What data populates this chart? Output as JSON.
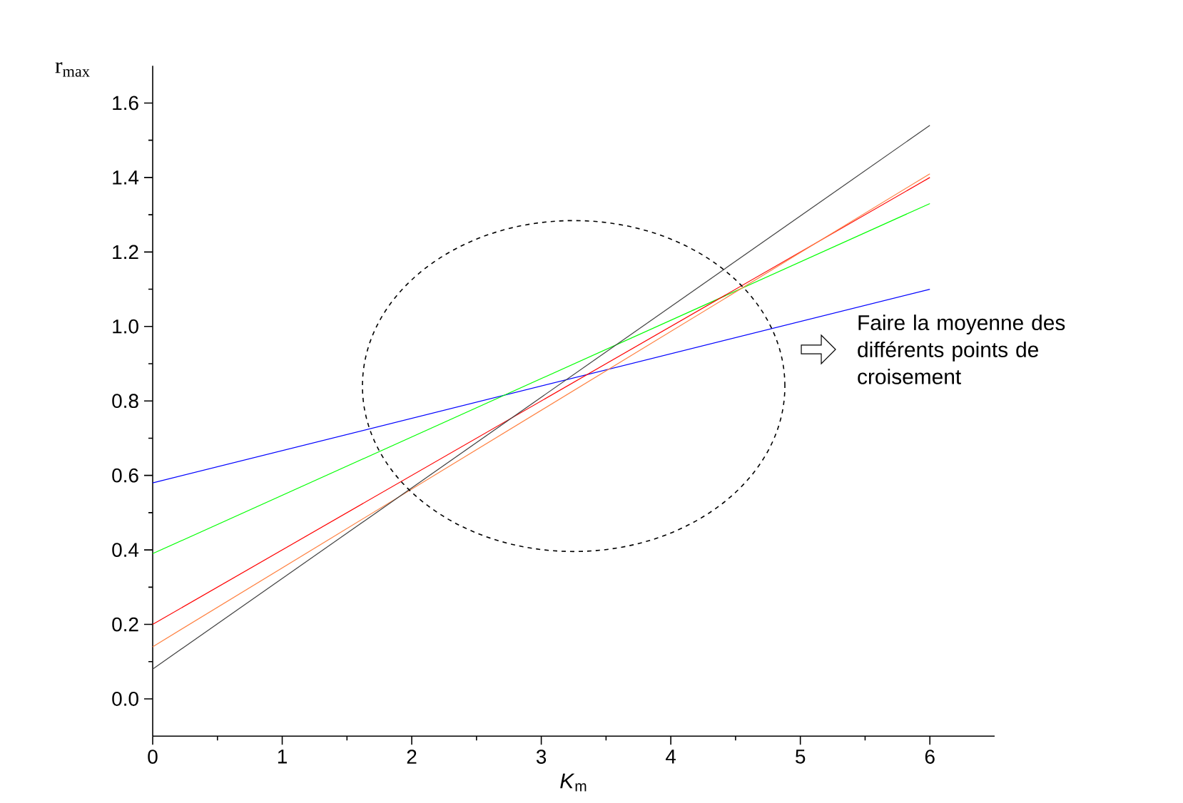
{
  "chart_data": {
    "type": "line",
    "xlabel": "*K*$_{m}$",
    "ylabel": "r$_{max}$",
    "x": [
      0,
      6
    ],
    "series": [
      {
        "color": "#0000ff",
        "values": [
          0.58,
          1.1
        ]
      },
      {
        "color": "#00ff00",
        "values": [
          0.39,
          1.33
        ]
      },
      {
        "color": "#ff0000",
        "values": [
          0.2,
          1.4
        ]
      },
      {
        "color": "#ff8040",
        "values": [
          0.14,
          1.41
        ]
      },
      {
        "color": "#404040",
        "values": [
          0.08,
          1.54
        ]
      }
    ],
    "xlim": [
      0,
      6.5
    ],
    "ylim": [
      -0.1,
      1.7
    ],
    "xticks": [
      0,
      1,
      2,
      3,
      4,
      5,
      6
    ],
    "yticks": [
      {
        "value": 0,
        "label": "0.0"
      },
      {
        "value": 0.2,
        "label": "0.2"
      },
      {
        "value": 0.4,
        "label": "0.4"
      },
      {
        "value": 0.6,
        "label": "0.6"
      },
      {
        "value": 0.8,
        "label": "0.8"
      },
      {
        "value": 1.0,
        "label": "1.0"
      },
      {
        "value": 1.2,
        "label": "1.2"
      },
      {
        "value": 1.4,
        "label": "1.4"
      },
      {
        "value": 1.6,
        "label": "1.6"
      }
    ],
    "grid": false,
    "marker": "none",
    "line_style": "solid",
    "annotations": [
      "Faire la moyenne des différents points de croisement"
    ]
  }
}
